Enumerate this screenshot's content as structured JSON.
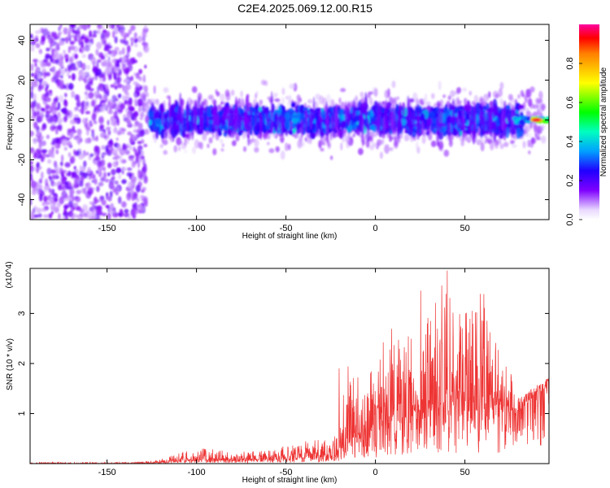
{
  "title": "C2E4.2025.069.12.00.R15",
  "chart_data": [
    {
      "type": "heatmap",
      "xlabel": "Height of straight line (km)",
      "ylabel": "Frequency (Hz)",
      "xlim": [
        -193,
        97
      ],
      "ylim": [
        -50,
        48
      ],
      "xticks": [
        -150,
        -100,
        -50,
        0,
        50
      ],
      "yticks": [
        -40,
        -20,
        0,
        20,
        40
      ],
      "colorbar": {
        "label": "Normalized spectral amplitude",
        "range": [
          0,
          1
        ],
        "ticks": [
          0.0,
          0.2,
          0.4,
          0.6,
          0.8
        ]
      },
      "regions": [
        {
          "x_range": [
            -193,
            -128
          ],
          "y_range": [
            -50,
            48
          ],
          "level": 0.12,
          "description_level": "low scattered"
        },
        {
          "x_range": [
            -128,
            80
          ],
          "y_range": [
            -15,
            15
          ],
          "level": 0.3
        },
        {
          "x_range": [
            80,
            97
          ],
          "y_range": [
            -3,
            3
          ],
          "level": 0.9
        }
      ],
      "peak": {
        "x": 90,
        "y": 0,
        "level": 0.95
      }
    },
    {
      "type": "line",
      "xlabel": "Height of straight line (km)",
      "ylabel": "SNR (10 * v/v)",
      "y_multiplier": "(x10^4)",
      "xlim": [
        -193,
        97
      ],
      "ylim": [
        0,
        3.9
      ],
      "xticks": [
        -150,
        -100,
        -50,
        0,
        50
      ],
      "yticks": [
        1,
        2,
        3
      ],
      "color": "#ee3333",
      "envelope": {
        "x": [
          -193,
          -150,
          -125,
          -115,
          -100,
          -90,
          -80,
          -60,
          -40,
          -22,
          -20,
          -10,
          0,
          10,
          20,
          25,
          30,
          35,
          40,
          45,
          50,
          55,
          60,
          65,
          70,
          75,
          80,
          85,
          90,
          97
        ],
        "max": [
          0.03,
          0.03,
          0.05,
          0.15,
          0.32,
          0.3,
          0.22,
          0.28,
          0.45,
          0.65,
          2.4,
          1.8,
          2.2,
          2.8,
          2.7,
          3.7,
          3.1,
          3.6,
          3.9,
          2.9,
          3.4,
          3.5,
          3.7,
          2.6,
          2.3,
          1.9,
          1.3,
          1.4,
          1.6,
          1.7
        ],
        "baseline": [
          0.0,
          0.0,
          0.01,
          0.03,
          0.07,
          0.07,
          0.06,
          0.08,
          0.1,
          0.15,
          0.3,
          0.5,
          0.6,
          0.75,
          0.85,
          0.95,
          1.0,
          1.05,
          1.1,
          1.05,
          1.0,
          1.05,
          1.1,
          1.05,
          1.0,
          1.0,
          1.0,
          1.2,
          1.4,
          1.45
        ]
      }
    }
  ]
}
